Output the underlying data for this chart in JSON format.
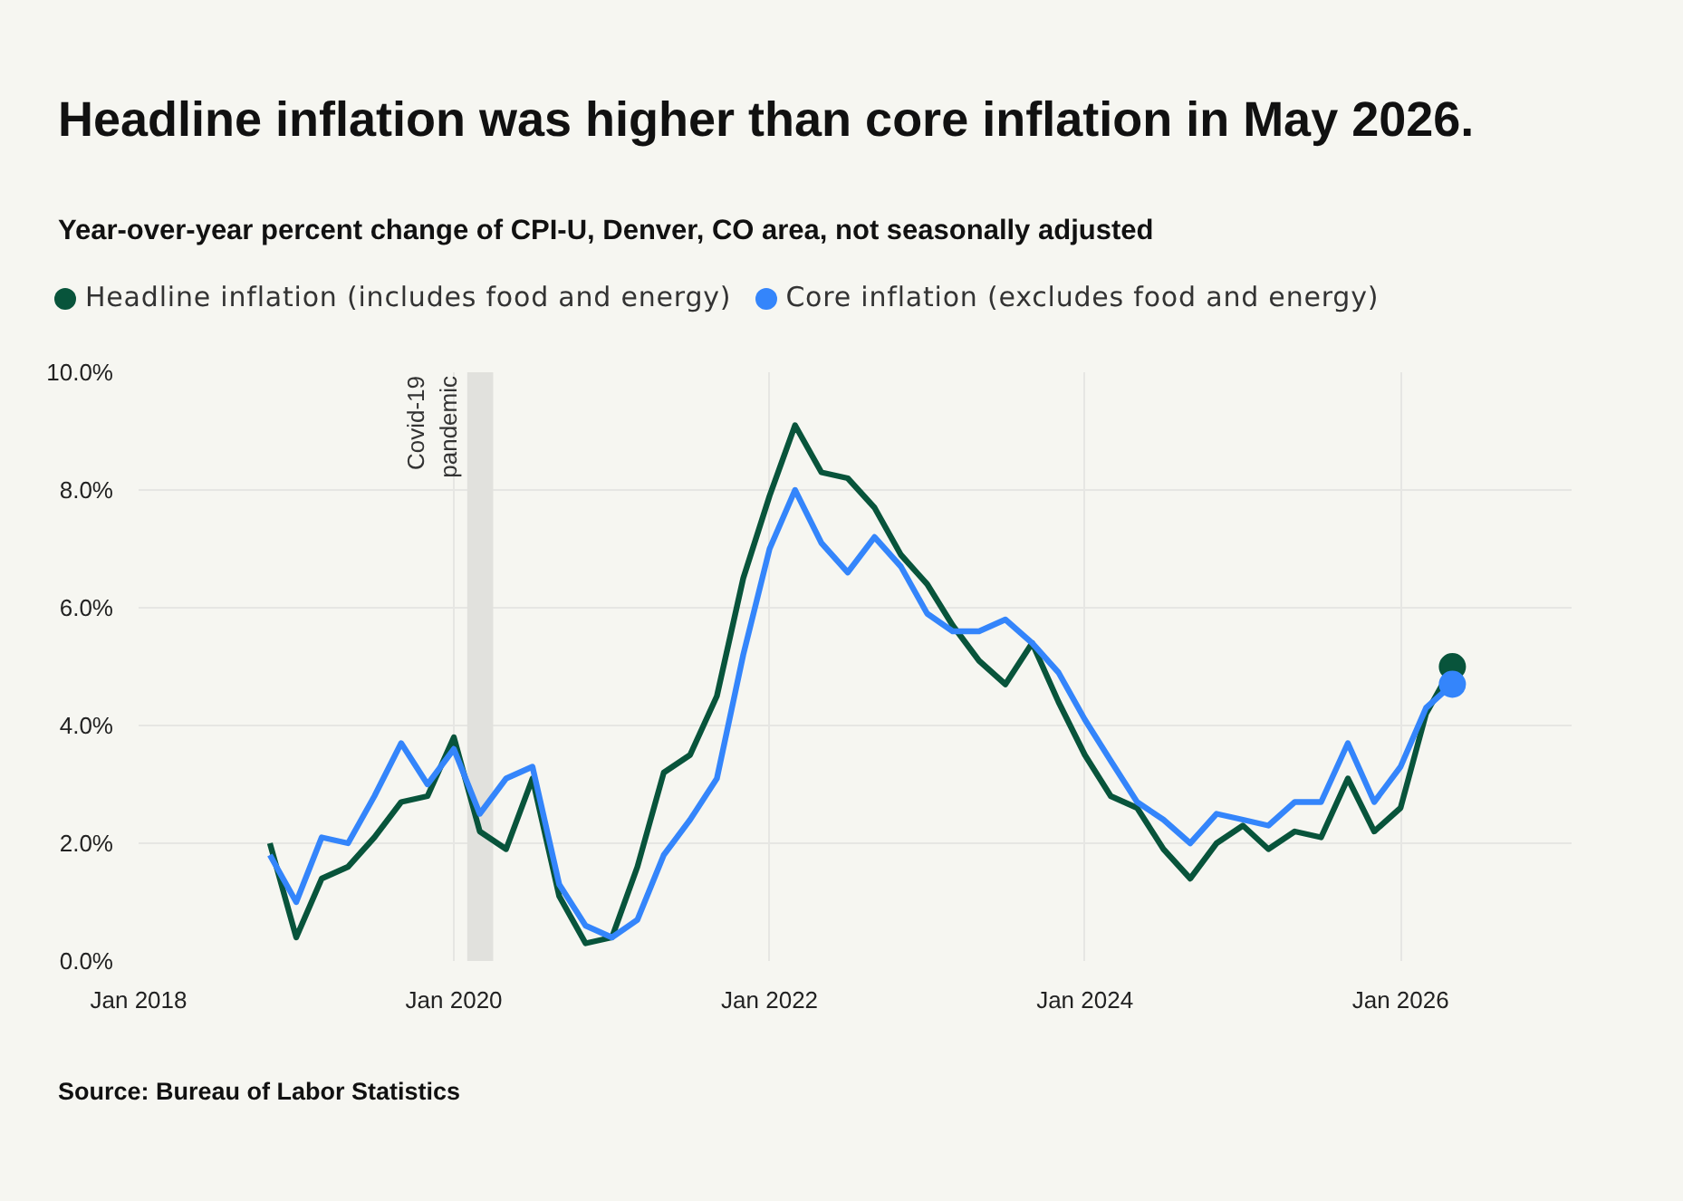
{
  "chart_data": {
    "type": "line",
    "title": "Headline inflation was higher than core inflation in May 2026.",
    "subtitle": "Year-over-year percent change of CPI-U, Denver, CO area, not seasonally adjusted",
    "annotations": [
      "Source: Bureau of Labor Statistics"
    ],
    "x": [
      "2018-11",
      "2019-01",
      "2019-03",
      "2019-05",
      "2019-07",
      "2019-09",
      "2019-11",
      "2020-01",
      "2020-03",
      "2020-05",
      "2020-07",
      "2020-09",
      "2020-11",
      "2021-01",
      "2021-03",
      "2021-05",
      "2021-07",
      "2021-09",
      "2021-11",
      "2022-01",
      "2022-03",
      "2022-05",
      "2022-07",
      "2022-09",
      "2022-11",
      "2023-01",
      "2023-03",
      "2023-05",
      "2023-07",
      "2023-09",
      "2023-11",
      "2024-01",
      "2024-03",
      "2024-05",
      "2024-07",
      "2024-09",
      "2024-11",
      "2025-01",
      "2025-03",
      "2025-05",
      "2025-07",
      "2025-09",
      "2025-11",
      "2026-01",
      "2026-03",
      "2026-05"
    ],
    "series": [
      {
        "name": "Headline inflation (includes food and energy)",
        "color": "#08543b",
        "values": [
          2.0,
          0.4,
          1.4,
          1.6,
          2.1,
          2.7,
          2.8,
          3.8,
          2.2,
          1.9,
          3.1,
          1.1,
          0.3,
          0.4,
          1.6,
          3.2,
          3.5,
          4.5,
          6.5,
          7.9,
          9.1,
          8.3,
          8.2,
          7.7,
          6.9,
          6.4,
          5.7,
          5.1,
          4.7,
          5.4,
          4.4,
          3.5,
          2.8,
          2.6,
          1.9,
          1.4,
          2.0,
          2.3,
          1.9,
          2.2,
          2.1,
          3.1,
          2.2,
          2.6,
          4.2,
          5.0
        ]
      },
      {
        "name": "Core inflation (excludes food and energy)",
        "color": "#3485fb",
        "values": [
          1.8,
          1.0,
          2.1,
          2.0,
          2.8,
          3.7,
          3.0,
          3.6,
          2.5,
          3.1,
          3.3,
          1.3,
          0.6,
          0.4,
          0.7,
          1.8,
          2.4,
          3.1,
          5.2,
          7.0,
          8.0,
          7.1,
          6.6,
          7.2,
          6.7,
          5.9,
          5.6,
          5.6,
          5.8,
          5.4,
          4.9,
          4.1,
          3.4,
          2.7,
          2.4,
          2.0,
          2.5,
          2.4,
          2.3,
          2.7,
          2.7,
          3.7,
          2.7,
          3.3,
          4.3,
          4.7
        ]
      },
      {
        "type": "scatter",
        "x": [
          "2026-05"
        ],
        "color": "#08543b",
        "values": [
          5.0
        ]
      },
      {
        "type": "scatter",
        "x": [
          "2026-05"
        ],
        "color": "#3485fb",
        "values": [
          4.7
        ]
      }
    ],
    "xlim": [
      "2018-01",
      "2027-02"
    ],
    "xticks": [
      {
        "value": "2018-01",
        "label": "Jan 2018"
      },
      {
        "value": "2020-01",
        "label": "Jan 2020"
      },
      {
        "value": "2022-01",
        "label": "Jan 2022"
      },
      {
        "value": "2024-01",
        "label": "Jan 2024"
      },
      {
        "value": "2026-01",
        "label": "Jan 2026"
      }
    ],
    "ylim": [
      0,
      10
    ],
    "yticks": [
      {
        "value": 0,
        "label": "0.0%"
      },
      {
        "value": 2,
        "label": "2.0%"
      },
      {
        "value": 4,
        "label": "4.0%"
      },
      {
        "value": 6,
        "label": "6.0%"
      },
      {
        "value": 8,
        "label": "8.0%"
      },
      {
        "value": 10,
        "label": "10.0%"
      }
    ],
    "bands": [
      {
        "axis": "x",
        "from": "2020-02",
        "to": "2020-04",
        "label": "Covid-19\npandemic",
        "color": "#e1e1dd"
      }
    ],
    "grid": true,
    "legend": "top left"
  }
}
